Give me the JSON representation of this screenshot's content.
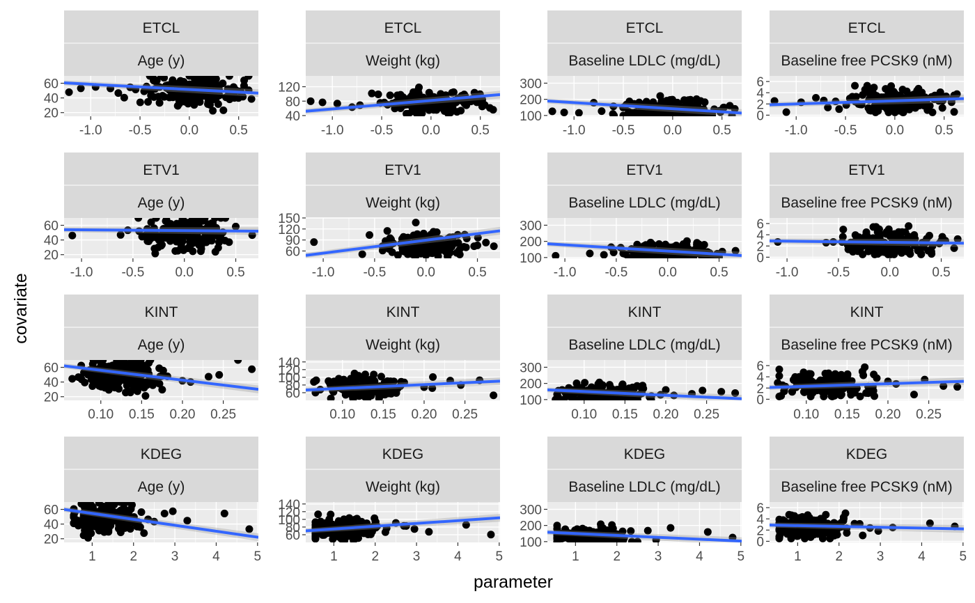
{
  "figure": {
    "xlabel": "parameter",
    "ylabel": "covariate"
  },
  "colors": {
    "panel_bg": "#ebebeb",
    "strip_bg": "#d9d9d9",
    "grid": "#ffffff",
    "points": "#000000",
    "fit_line": "#3366ff",
    "ribbon": "#999999"
  },
  "chart_data": {
    "type": "scatter",
    "facet_rows": [
      "ETCL",
      "ETV1",
      "KINT",
      "KDEG"
    ],
    "facet_cols": [
      "Age (y)",
      "Weight (kg)",
      "Baseline LDLC (mg/dL)",
      "Baseline free PCSK9 (nM)"
    ],
    "grid": true,
    "smooth": "linear fit with confidence band",
    "rows": [
      {
        "parameter": "ETCL",
        "x_range": [
          -1.27,
          0.7
        ],
        "x_ticks": [
          -1.0,
          -0.5,
          0.0,
          0.5
        ],
        "x_tick_labels": [
          "-1.0",
          "-0.5",
          "0.0",
          "0.5"
        ],
        "x_center": 0.0,
        "x_spread": 0.24,
        "x_outliers": [
          -1.22,
          -1.1,
          -0.95,
          -0.8,
          -0.72,
          -0.6,
          0.4,
          0.52,
          0.63
        ]
      },
      {
        "parameter": "ETV1",
        "x_range": [
          -1.17,
          0.72
        ],
        "x_ticks": [
          -1.0,
          -0.5,
          0.0,
          0.5
        ],
        "x_tick_labels": [
          "-1.0",
          "-0.5",
          "0.0",
          "0.5"
        ],
        "x_center": 0.0,
        "x_spread": 0.2,
        "x_outliers": [
          -1.09,
          -0.62,
          -0.55,
          0.5,
          0.66
        ]
      },
      {
        "parameter": "KINT",
        "x_range": [
          0.055,
          0.293
        ],
        "x_ticks": [
          0.1,
          0.15,
          0.2,
          0.25
        ],
        "x_tick_labels": [
          "0.10",
          "0.15",
          "0.20",
          "0.25"
        ],
        "x_center": 0.125,
        "x_spread": 0.025,
        "x_outliers": [
          0.065,
          0.2,
          0.21,
          0.232,
          0.245,
          0.268,
          0.285
        ]
      },
      {
        "parameter": "KDEG",
        "x_range": [
          0.32,
          5.02
        ],
        "x_ticks": [
          1,
          2,
          3,
          4,
          5
        ],
        "x_tick_labels": [
          "1",
          "2",
          "3",
          "4",
          "5"
        ],
        "x_center": 1.3,
        "x_spread": 0.45,
        "x_outliers": [
          2.5,
          2.75,
          2.95,
          3.3,
          4.2,
          4.8
        ]
      }
    ],
    "cols": [
      {
        "covariate": "Age (y)",
        "y_range": [
          15,
          70
        ],
        "y_ticks": [
          20,
          40,
          60
        ],
        "y_tick_labels": [
          "20",
          "40",
          "60"
        ],
        "y_center": 50,
        "y_spread": 11,
        "y_clip": [
          20,
          70
        ]
      },
      {
        "covariate": "Weight (kg)",
        "y_range": [
          38,
          150
        ],
        "y_ticks": [
          40,
          80,
          120
        ],
        "y_tick_labels": [
          "40",
          "80",
          "120"
        ],
        "y_center": 75,
        "y_spread": 15,
        "y_clip": [
          45,
          140
        ]
      },
      {
        "covariate": "Baseline LDLC (mg/dL)",
        "y_range": [
          95,
          345
        ],
        "y_ticks": [
          100,
          200,
          300
        ],
        "y_tick_labels": [
          "100",
          "200",
          "300"
        ],
        "y_center": 135,
        "y_spread": 30,
        "y_clip": [
          100,
          340
        ]
      },
      {
        "covariate": "Baseline free PCSK9 (nM)",
        "y_range": [
          -0.2,
          7.0
        ],
        "y_ticks": [
          0,
          2,
          4,
          6
        ],
        "y_tick_labels": [
          "0",
          "2",
          "4",
          "6"
        ],
        "y_center": 2.5,
        "y_spread": 1.1,
        "y_clip": [
          0.5,
          6.9
        ]
      }
    ],
    "panel_overrides": [
      {
        "row": 1,
        "col": 1,
        "y_range": [
          40,
          150
        ],
        "y_ticks": [
          60,
          90,
          120,
          150
        ],
        "y_tick_labels": [
          "60",
          "90",
          "120",
          "150"
        ]
      },
      {
        "row": 2,
        "col": 1,
        "y_range": [
          40,
          145
        ],
        "y_ticks": [
          60,
          80,
          100,
          120,
          140
        ],
        "y_tick_labels": [
          "60",
          "80",
          "100",
          "120",
          "140"
        ]
      },
      {
        "row": 3,
        "col": 1,
        "y_range": [
          40,
          145
        ],
        "y_ticks": [
          60,
          80,
          100,
          120,
          140
        ],
        "y_tick_labels": [
          "60",
          "80",
          "100",
          "120",
          "140"
        ]
      }
    ],
    "fit_lines": [
      [
        [
          -1.27,
          60.5
        ],
        [
          0.7,
          46.5
        ]
      ],
      [
        [
          -1.27,
          52.0
        ],
        [
          0.7,
          98.0
        ]
      ],
      [
        [
          -1.27,
          190.0
        ],
        [
          0.7,
          115.0
        ]
      ],
      [
        [
          -1.27,
          1.85
        ],
        [
          0.7,
          2.95
        ]
      ],
      [
        [
          -1.17,
          54.0
        ],
        [
          0.72,
          52.0
        ]
      ],
      [
        [
          -1.17,
          48.0
        ],
        [
          0.72,
          115.0
        ]
      ],
      [
        [
          -1.17,
          185.0
        ],
        [
          0.72,
          112.0
        ]
      ],
      [
        [
          -1.17,
          2.9
        ],
        [
          0.72,
          2.5
        ]
      ],
      [
        [
          0.055,
          62.0
        ],
        [
          0.293,
          30.0
        ]
      ],
      [
        [
          0.055,
          67.0
        ],
        [
          0.293,
          90.0
        ]
      ],
      [
        [
          0.055,
          160.0
        ],
        [
          0.293,
          105.0
        ]
      ],
      [
        [
          0.055,
          2.1
        ],
        [
          0.293,
          3.2
        ]
      ],
      [
        [
          0.32,
          60.0
        ],
        [
          5.02,
          22.0
        ]
      ],
      [
        [
          0.32,
          70.0
        ],
        [
          5.02,
          104.0
        ]
      ],
      [
        [
          0.32,
          158.0
        ],
        [
          5.02,
          103.0
        ]
      ],
      [
        [
          0.32,
          2.9
        ],
        [
          5.02,
          2.2
        ]
      ]
    ]
  }
}
